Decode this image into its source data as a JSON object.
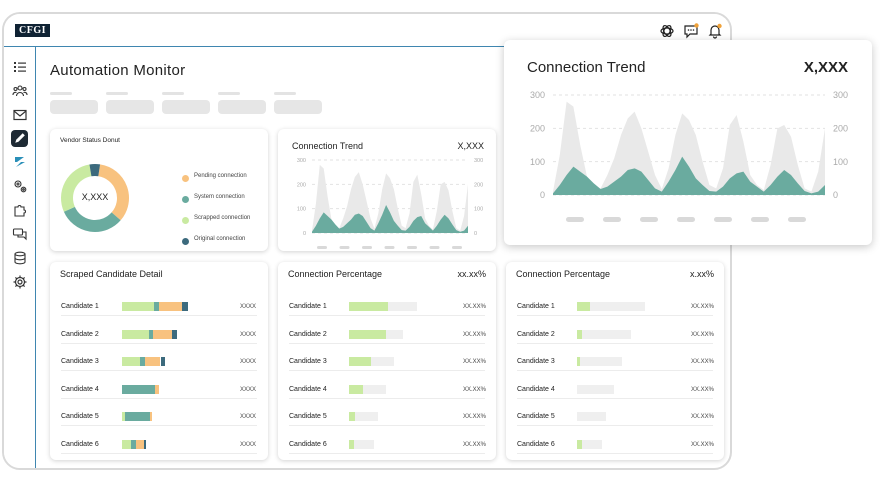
{
  "app": {
    "logo_text": "CFGI",
    "page_title": "Automation Monitor"
  },
  "topbar": {
    "icons": [
      "chatgpt-icon",
      "chat-icon",
      "bell-icon"
    ]
  },
  "sidebar": {
    "icons": [
      "list-icon",
      "users-icon",
      "mail-icon",
      "pen-icon",
      "brand-icon",
      "gears-icon",
      "puzzle-icon",
      "messages-icon",
      "database-icon",
      "settings-icon"
    ],
    "active_index": 3
  },
  "colors": {
    "orange": "#f8c27f",
    "teal": "#6aab9f",
    "light_green": "#c9eaa1",
    "dark_teal": "#3c6a7d",
    "grey_area": "#e9e9e9"
  },
  "vendor_donut": {
    "title": "Vendor Status Donut",
    "center_value": "X,XXX",
    "legend": [
      {
        "label": "Pending connection",
        "value": "X,XXX",
        "pct": "(XX.XX%)",
        "color": "#f8c27f"
      },
      {
        "label": "System connection",
        "value": "X,XXX",
        "pct": "(XX.XX%)",
        "color": "#6aab9f"
      },
      {
        "label": "Scrapped connection",
        "value": "X,XXX",
        "pct": "(XX.XX%)",
        "color": "#c9eaa1"
      },
      {
        "label": "Original connection",
        "value": "X,XXX",
        "pct": "(XX.XX%)",
        "color": "#3c6a7d"
      }
    ],
    "segments": [
      0.34,
      0.32,
      0.29,
      0.05
    ]
  },
  "trend_small": {
    "title": "Connection Trend",
    "value": "X,XXX"
  },
  "trend_popup": {
    "title": "Connection Trend",
    "value": "X,XXX"
  },
  "chart_data": {
    "type": "area",
    "title": "Connection Trend",
    "ylim": [
      0,
      300
    ],
    "yticks": [
      "300",
      "200",
      "100",
      "0"
    ],
    "x": [
      1,
      2,
      3,
      4,
      5,
      6,
      7,
      8,
      9,
      10,
      11,
      12,
      13,
      14,
      15,
      16,
      17,
      18,
      19,
      20,
      21,
      22,
      23,
      24,
      25,
      26,
      27,
      28,
      29,
      30,
      31,
      32,
      33,
      34,
      35,
      36,
      37,
      38,
      39,
      40,
      41
    ],
    "series": [
      {
        "values": [
          10,
          120,
          280,
          265,
          150,
          55,
          18,
          20,
          60,
          110,
          180,
          230,
          250,
          200,
          130,
          60,
          18,
          80,
          180,
          245,
          225,
          180,
          100,
          30,
          20,
          80,
          210,
          240,
          160,
          60,
          30,
          15,
          90,
          200,
          210,
          175,
          90,
          20,
          10,
          70,
          200
        ]
      },
      {
        "values": [
          5,
          30,
          60,
          85,
          70,
          55,
          35,
          18,
          25,
          40,
          55,
          75,
          80,
          70,
          45,
          20,
          10,
          40,
          75,
          115,
          85,
          50,
          30,
          12,
          10,
          25,
          50,
          65,
          70,
          40,
          25,
          10,
          30,
          55,
          75,
          60,
          35,
          12,
          5,
          10,
          30
        ]
      }
    ],
    "grid": true
  },
  "scraped": {
    "title": "Scraped Candidate Detail",
    "rows": [
      {
        "label": "Candidate 1",
        "value": "XXXX",
        "segments": [
          [
            0.45,
            "#c9eaa1"
          ],
          [
            0.08,
            "#6aab9f"
          ],
          [
            0.33,
            "#f8c27f"
          ],
          [
            0.08,
            "#3c6a7d"
          ]
        ]
      },
      {
        "label": "Candidate 2",
        "value": "XXXX",
        "segments": [
          [
            0.38,
            "#c9eaa1"
          ],
          [
            0.06,
            "#6aab9f"
          ],
          [
            0.27,
            "#f8c27f"
          ],
          [
            0.07,
            "#3c6a7d"
          ]
        ]
      },
      {
        "label": "Candidate 3",
        "value": "XXXX",
        "segments": [
          [
            0.25,
            "#c9eaa1"
          ],
          [
            0.08,
            "#6aab9f"
          ],
          [
            0.22,
            "#f8c27f"
          ],
          [
            0.07,
            "#3c6a7d"
          ]
        ]
      },
      {
        "label": "Candidate 4",
        "value": "XXXX",
        "segments": [
          [
            0.47,
            "#6aab9f"
          ],
          [
            0.06,
            "#f8c27f"
          ]
        ]
      },
      {
        "label": "Candidate 5",
        "value": "XXXX",
        "segments": [
          [
            0.04,
            "#c9eaa1"
          ],
          [
            0.36,
            "#6aab9f"
          ],
          [
            0.03,
            "#f8c27f"
          ]
        ]
      },
      {
        "label": "Candidate 6",
        "value": "XXXX",
        "segments": [
          [
            0.13,
            "#c9eaa1"
          ],
          [
            0.07,
            "#6aab9f"
          ],
          [
            0.11,
            "#f8c27f"
          ],
          [
            0.04,
            "#3c6a7d"
          ]
        ]
      }
    ]
  },
  "percent_a": {
    "title": "Connection Percentage",
    "value": "xx.xx%",
    "rows": [
      {
        "label": "Candidate 1",
        "value": "XX.XX%",
        "fill": 0.58,
        "track": 1.0
      },
      {
        "label": "Candidate 2",
        "value": "XX.XX%",
        "fill": 0.54,
        "track": 0.79
      },
      {
        "label": "Candidate 3",
        "value": "XX.XX%",
        "fill": 0.32,
        "track": 0.66
      },
      {
        "label": "Candidate 4",
        "value": "XX.XX%",
        "fill": 0.2,
        "track": 0.54
      },
      {
        "label": "Candidate 5",
        "value": "XX.XX%",
        "fill": 0.09,
        "track": 0.43
      },
      {
        "label": "Candidate 6",
        "value": "XX.XX%",
        "fill": 0.07,
        "track": 0.37
      }
    ]
  },
  "percent_b": {
    "title": "Connection Percentage",
    "value": "x.xx%",
    "rows": [
      {
        "label": "Candidate 1",
        "value": "XX.XX%",
        "fill": 0.19,
        "track": 1.0
      },
      {
        "label": "Candidate 2",
        "value": "XX.XX%",
        "fill": 0.07,
        "track": 0.79
      },
      {
        "label": "Candidate 3",
        "value": "XX.XX%",
        "fill": 0.05,
        "track": 0.66
      },
      {
        "label": "Candidate 4",
        "value": "XX.XX%",
        "fill": 0.0,
        "track": 0.54
      },
      {
        "label": "Candidate 5",
        "value": "XX.XX%",
        "fill": 0.0,
        "track": 0.43
      },
      {
        "label": "Candidate 6",
        "value": "XX.XX%",
        "fill": 0.08,
        "track": 0.37
      }
    ]
  }
}
